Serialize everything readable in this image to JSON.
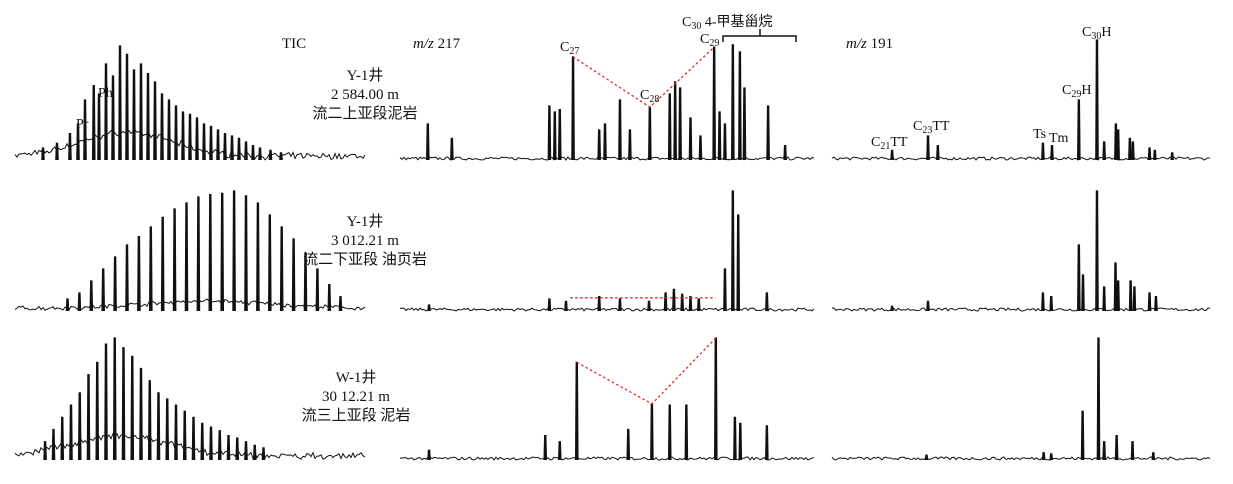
{
  "chart_data": {
    "type": "line",
    "title": "",
    "xlabel": "",
    "ylabel": "",
    "grid": false,
    "columns": [
      {
        "key": "tic",
        "title": "TIC"
      },
      {
        "key": "mz217",
        "title_italic": "m/z",
        "title_num": " 217"
      },
      {
        "key": "mz191",
        "title_italic": "m/z",
        "title_num": " 191"
      }
    ],
    "rows": [
      {
        "well": "Y-1井",
        "depth": "2 584.00 m",
        "formation": "流二上亚段泥岩",
        "tic": {
          "hump": [
            32,
            20,
            18
          ],
          "peaks": [
            [
              8,
              10
            ],
            [
              12,
              14
            ],
            [
              15.7,
              22
            ],
            [
              18,
              30
            ],
            [
              20,
              50
            ],
            [
              22.5,
              62
            ],
            [
              24,
              55
            ],
            [
              26,
              80
            ],
            [
              28,
              70
            ],
            [
              30,
              95
            ],
            [
              32,
              88
            ],
            [
              34,
              75
            ],
            [
              36,
              80
            ],
            [
              38,
              72
            ],
            [
              40,
              65
            ],
            [
              42,
              55
            ],
            [
              44,
              50
            ],
            [
              46,
              45
            ],
            [
              48,
              40
            ],
            [
              50,
              38
            ],
            [
              52,
              35
            ],
            [
              54,
              30
            ],
            [
              56,
              28
            ],
            [
              58,
              25
            ],
            [
              60,
              22
            ],
            [
              62,
              20
            ],
            [
              64,
              18
            ],
            [
              66,
              15
            ],
            [
              68,
              12
            ],
            [
              70,
              10
            ],
            [
              73,
              8
            ],
            [
              76,
              6
            ]
          ]
        },
        "mz217": {
          "peaks": [
            [
              6.7,
              30
            ],
            [
              12.5,
              18
            ],
            [
              36,
              45
            ],
            [
              37.3,
              40
            ],
            [
              38.5,
              42
            ],
            [
              41.7,
              86
            ],
            [
              48,
              25
            ],
            [
              49.4,
              30
            ],
            [
              53,
              50
            ],
            [
              55.4,
              25
            ],
            [
              60.2,
              44
            ],
            [
              65,
              55
            ],
            [
              66.3,
              65
            ],
            [
              67.5,
              60
            ],
            [
              70,
              35
            ],
            [
              72.4,
              20
            ],
            [
              75.7,
              94
            ],
            [
              77,
              40
            ],
            [
              78.3,
              30
            ],
            [
              80.2,
              96
            ],
            [
              81.9,
              90
            ],
            [
              83,
              60
            ],
            [
              88.7,
              45
            ],
            [
              92.8,
              12
            ]
          ],
          "guide_peaks": [
            5,
            10,
            16
          ]
        },
        "mz191": {
          "peaks": [
            [
              15.9,
              8
            ],
            [
              25.4,
              20
            ],
            [
              28,
              12
            ],
            [
              55.8,
              14
            ],
            [
              58.2,
              12
            ],
            [
              65.3,
              50
            ],
            [
              70.1,
              100
            ],
            [
              72,
              15
            ],
            [
              75.1,
              30
            ],
            [
              75.7,
              25
            ],
            [
              78.8,
              18
            ],
            [
              79.6,
              15
            ],
            [
              84,
              10
            ],
            [
              85.4,
              8
            ],
            [
              90,
              6
            ]
          ]
        }
      },
      {
        "well": "Y-1井",
        "depth": "3 012.21 m",
        "formation": "流二下亚段  油页岩",
        "tic": {
          "hump": [
            55,
            6,
            25
          ],
          "peaks": [
            [
              15,
              10
            ],
            [
              18.4,
              15
            ],
            [
              21.8,
              25
            ],
            [
              25.2,
              35
            ],
            [
              28.6,
              45
            ],
            [
              32,
              55
            ],
            [
              35.4,
              62
            ],
            [
              38.8,
              70
            ],
            [
              42.2,
              78
            ],
            [
              45.6,
              85
            ],
            [
              49,
              90
            ],
            [
              52.4,
              95
            ],
            [
              55.8,
              97
            ],
            [
              59.2,
              98
            ],
            [
              62.6,
              100
            ],
            [
              66,
              96
            ],
            [
              69.4,
              90
            ],
            [
              72.8,
              80
            ],
            [
              76.2,
              70
            ],
            [
              79.6,
              60
            ],
            [
              83,
              48
            ],
            [
              86.4,
              35
            ],
            [
              89.8,
              22
            ],
            [
              93,
              12
            ]
          ]
        },
        "mz217": {
          "peaks": [
            [
              7,
              5
            ],
            [
              36,
              10
            ],
            [
              40,
              8
            ],
            [
              48,
              12
            ],
            [
              53,
              10
            ],
            [
              60,
              8
            ],
            [
              64,
              15
            ],
            [
              66,
              18
            ],
            [
              68,
              14
            ],
            [
              70,
              12
            ],
            [
              72,
              10
            ],
            [
              78.3,
              35
            ],
            [
              80.2,
              100
            ],
            [
              81.5,
              80
            ],
            [
              88.4,
              15
            ]
          ],
          "guide_line": [
            [
              41,
              11
            ],
            [
              76,
              11
            ]
          ]
        },
        "mz191": {
          "peaks": [
            [
              15.9,
              4
            ],
            [
              25.4,
              8
            ],
            [
              55.8,
              15
            ],
            [
              58,
              12
            ],
            [
              65.3,
              55
            ],
            [
              66.4,
              30
            ],
            [
              70.1,
              100
            ],
            [
              72,
              20
            ],
            [
              75,
              40
            ],
            [
              75.7,
              25
            ],
            [
              79,
              25
            ],
            [
              80,
              20
            ],
            [
              84,
              15
            ],
            [
              85.7,
              12
            ]
          ]
        }
      },
      {
        "well": "W-1井",
        "depth": "30 12.21 m",
        "formation": "流三上亚段  泥岩",
        "tic": {
          "hump": [
            30,
            16,
            20
          ],
          "peaks": [
            [
              8.6,
              15
            ],
            [
              11,
              25
            ],
            [
              13.5,
              35
            ],
            [
              16,
              45
            ],
            [
              18.5,
              55
            ],
            [
              21,
              70
            ],
            [
              23.5,
              80
            ],
            [
              26,
              95
            ],
            [
              28.5,
              100
            ],
            [
              31,
              92
            ],
            [
              33.5,
              85
            ],
            [
              36,
              75
            ],
            [
              38.5,
              65
            ],
            [
              41,
              55
            ],
            [
              43.5,
              50
            ],
            [
              46,
              45
            ],
            [
              48.5,
              40
            ],
            [
              51,
              35
            ],
            [
              53.5,
              30
            ],
            [
              56,
              27
            ],
            [
              58.5,
              24
            ],
            [
              61,
              20
            ],
            [
              63.5,
              18
            ],
            [
              66,
              15
            ],
            [
              68.5,
              12
            ],
            [
              71,
              10
            ]
          ]
        },
        "mz217": {
          "peaks": [
            [
              7,
              8
            ],
            [
              35,
              20
            ],
            [
              38.5,
              15
            ],
            [
              42.6,
              80
            ],
            [
              55,
              25
            ],
            [
              60.7,
              46
            ],
            [
              65,
              45
            ],
            [
              69,
              45
            ],
            [
              76.1,
              100
            ],
            [
              80.7,
              35
            ],
            [
              82,
              30
            ],
            [
              88.4,
              28
            ]
          ],
          "guide_peaks": [
            3,
            5,
            8
          ]
        },
        "mz191": {
          "peaks": [
            [
              25,
              4
            ],
            [
              56,
              6
            ],
            [
              58,
              5
            ],
            [
              66.3,
              40
            ],
            [
              70.5,
              100
            ],
            [
              72,
              15
            ],
            [
              75.3,
              20
            ],
            [
              79.5,
              15
            ],
            [
              85,
              6
            ]
          ]
        }
      }
    ],
    "annotations": {
      "pr": "Pr",
      "ph": "Ph",
      "c27": {
        "base": "C",
        "sub": "27"
      },
      "c28": {
        "base": "C",
        "sub": "28"
      },
      "c29": {
        "base": "C",
        "sub": "29"
      },
      "c30_methyl": {
        "base": "C",
        "sub": "30",
        "rest": " 4-甲基甾烷"
      },
      "c21tt": {
        "base": "C",
        "sub": "21",
        "rest": "TT"
      },
      "c23tt": {
        "base": "C",
        "sub": "23",
        "rest": "TT"
      },
      "ts": "Ts",
      "tm": "Tm",
      "c29h": {
        "base": "C",
        "sub": "29",
        "rest": "H"
      },
      "c30h": {
        "base": "C",
        "sub": "30",
        "rest": "H"
      }
    },
    "colors": {
      "trace": "#111111",
      "guide": "#e8242b"
    }
  }
}
